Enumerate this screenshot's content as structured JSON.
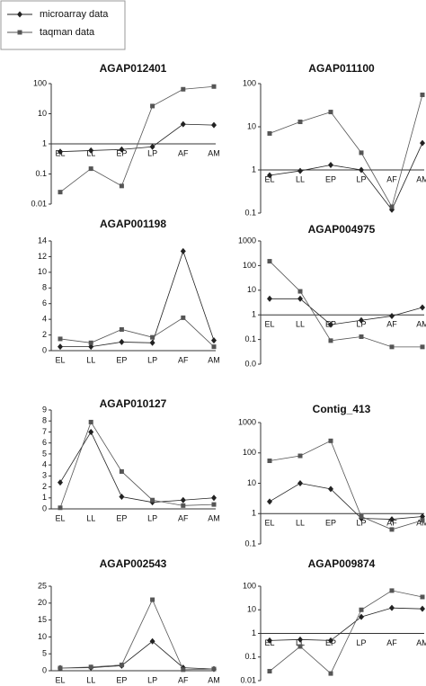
{
  "chart_data": [
    {
      "type": "line",
      "title": "AGAP012401",
      "categories": [
        "EL",
        "LL",
        "EP",
        "LP",
        "AF",
        "AM"
      ],
      "log": true,
      "ylim": [
        0.01,
        100
      ],
      "yticks": [
        0.01,
        0.1,
        1,
        10,
        100
      ],
      "series": [
        {
          "name": "microarray data",
          "marker": "diamond",
          "color": "#222",
          "values": [
            0.55,
            0.6,
            0.65,
            0.8,
            4.5,
            4.2
          ]
        },
        {
          "name": "taqman data",
          "marker": "square",
          "color": "#555",
          "values": [
            0.025,
            0.15,
            0.04,
            18,
            65,
            80
          ]
        }
      ]
    },
    {
      "type": "line",
      "title": "AGAP011100",
      "categories": [
        "EL",
        "LL",
        "EP",
        "LP",
        "AF",
        "AM"
      ],
      "log": true,
      "ylim": [
        0.1,
        100
      ],
      "yticks": [
        0.1,
        1,
        10,
        100
      ],
      "series": [
        {
          "marker": "diamond",
          "color": "#222",
          "values": [
            0.75,
            0.95,
            1.3,
            1.0,
            0.12,
            4.2
          ]
        },
        {
          "marker": "square",
          "color": "#555",
          "values": [
            7,
            13,
            22,
            2.5,
            0.14,
            55
          ]
        }
      ]
    },
    {
      "type": "line",
      "title": "AGAP001198",
      "categories": [
        "EL",
        "LL",
        "EP",
        "LP",
        "AF",
        "AM"
      ],
      "log": false,
      "ylim": [
        0,
        14
      ],
      "yticks": [
        0,
        2,
        4,
        6,
        8,
        10,
        12,
        14
      ],
      "series": [
        {
          "marker": "diamond",
          "color": "#222",
          "values": [
            0.5,
            0.5,
            1.1,
            1.0,
            12.7,
            1.3
          ]
        },
        {
          "marker": "square",
          "color": "#555",
          "values": [
            1.5,
            1.0,
            2.7,
            1.7,
            4.2,
            0.5
          ]
        }
      ]
    },
    {
      "type": "line",
      "title": "AGAP004975",
      "categories": [
        "EL",
        "LL",
        "EP",
        "LP",
        "AF",
        "AM"
      ],
      "log": true,
      "ylim": [
        0.01,
        1000
      ],
      "yticks": [
        {
          "value": 0.01,
          "label": "0.0"
        },
        0.1,
        1,
        10,
        100,
        1000
      ],
      "series": [
        {
          "marker": "diamond",
          "color": "#222",
          "values": [
            4.5,
            4.5,
            0.4,
            0.6,
            0.9,
            2
          ]
        },
        {
          "marker": "square",
          "color": "#555",
          "values": [
            150,
            9,
            0.09,
            0.13,
            0.05,
            0.05
          ]
        }
      ]
    },
    {
      "type": "line",
      "title": "AGAP010127",
      "categories": [
        "EL",
        "LL",
        "EP",
        "LP",
        "AF",
        "AM"
      ],
      "log": false,
      "ylim": [
        0,
        9
      ],
      "yticks": [
        0,
        1,
        2,
        3,
        4,
        5,
        6,
        7,
        8,
        9
      ],
      "series": [
        {
          "marker": "diamond",
          "color": "#222",
          "values": [
            2.4,
            7.0,
            1.1,
            0.6,
            0.8,
            1.0
          ]
        },
        {
          "marker": "square",
          "color": "#555",
          "values": [
            0.1,
            7.9,
            3.4,
            0.8,
            0.3,
            0.4
          ]
        }
      ]
    },
    {
      "type": "line",
      "title": "Contig_413",
      "categories": [
        "EL",
        "LL",
        "EP",
        "LP",
        "AF",
        "AM"
      ],
      "log": true,
      "ylim": [
        0.1,
        1000
      ],
      "yticks": [
        0.1,
        1,
        10,
        100,
        1000
      ],
      "series": [
        {
          "marker": "diamond",
          "color": "#222",
          "values": [
            2.5,
            10,
            6.5,
            0.7,
            0.65,
            0.8
          ]
        },
        {
          "marker": "square",
          "color": "#555",
          "values": [
            55,
            80,
            250,
            0.8,
            0.3,
            0.6
          ]
        }
      ]
    },
    {
      "type": "line",
      "title": "AGAP002543",
      "categories": [
        "EL",
        "LL",
        "EP",
        "LP",
        "AF",
        "AM"
      ],
      "log": false,
      "ylim": [
        0,
        25
      ],
      "yticks": [
        0,
        5,
        10,
        15,
        20,
        25
      ],
      "series": [
        {
          "marker": "diamond",
          "color": "#222",
          "values": [
            0.8,
            0.9,
            1.5,
            8.7,
            0.9,
            0.5
          ]
        },
        {
          "marker": "square",
          "color": "#555",
          "values": [
            0.8,
            1.1,
            1.7,
            21,
            0.3,
            0.5
          ]
        }
      ]
    },
    {
      "type": "line",
      "title": "AGAP009874",
      "categories": [
        "EL",
        "LL",
        "EP",
        "LP",
        "AF",
        "AM"
      ],
      "log": true,
      "ylim": [
        0.01,
        100
      ],
      "yticks": [
        0.01,
        0.1,
        1,
        10,
        100
      ],
      "series": [
        {
          "marker": "diamond",
          "color": "#222",
          "values": [
            0.5,
            0.55,
            0.5,
            5,
            12,
            11
          ]
        },
        {
          "marker": "square",
          "color": "#555",
          "values": [
            0.025,
            0.28,
            0.02,
            10,
            65,
            35
          ]
        }
      ]
    }
  ]
}
